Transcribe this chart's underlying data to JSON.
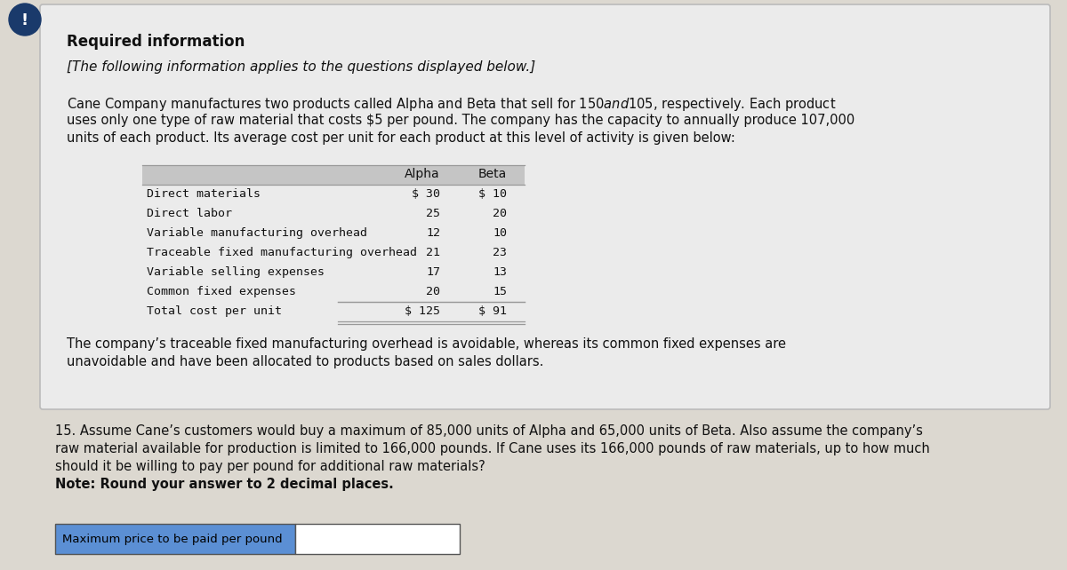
{
  "outer_bg": "#dcd8d0",
  "card_bg": "#ebebeb",
  "title": "Required information",
  "subtitle": "[The following information applies to the questions displayed below.]",
  "paragraph_line1": "Cane Company manufactures two products called Alpha and Beta that sell for $150 and $105, respectively. Each product",
  "paragraph_line2": "uses only one type of raw material that costs $5 per pound. The company has the capacity to annually produce 107,000",
  "paragraph_line3": "units of each product. Its average cost per unit for each product at this level of activity is given below:",
  "table_rows": [
    [
      "Direct materials",
      "$ 30",
      "$ 10"
    ],
    [
      "Direct labor",
      "25",
      "20"
    ],
    [
      "Variable manufacturing overhead",
      "12",
      "10"
    ],
    [
      "Traceable fixed manufacturing overhead",
      "21",
      "23"
    ],
    [
      "Variable selling expenses",
      "17",
      "13"
    ],
    [
      "Common fixed expenses",
      "20",
      "15"
    ],
    [
      "Total cost per unit",
      "$ 125",
      "$ 91"
    ]
  ],
  "table_header": [
    "",
    "Alpha",
    "Beta"
  ],
  "footer_line1": "The company’s traceable fixed manufacturing overhead is avoidable, whereas its common fixed expenses are",
  "footer_line2": "unavoidable and have been allocated to products based on sales dollars.",
  "q_line1": "15. Assume Cane’s customers would buy a maximum of 85,000 units of Alpha and 65,000 units of Beta. Also assume the company’s",
  "q_line2": "raw material available for production is limited to 166,000 pounds. If Cane uses its 166,000 pounds of raw materials, up to how much",
  "q_line3": "should it be willing to pay per pound for additional raw materials?",
  "q_line4": "Note: Round your answer to 2 decimal places.",
  "label_text": "Maximum price to be paid per pound",
  "label_bg": "#5b8fd4",
  "input_bg": "#ffffff",
  "icon_bg": "#1a3a6b",
  "card_border": "#bbbbbb",
  "line_color": "#999999",
  "header_bg": "#c5c5c5",
  "text_color": "#111111"
}
